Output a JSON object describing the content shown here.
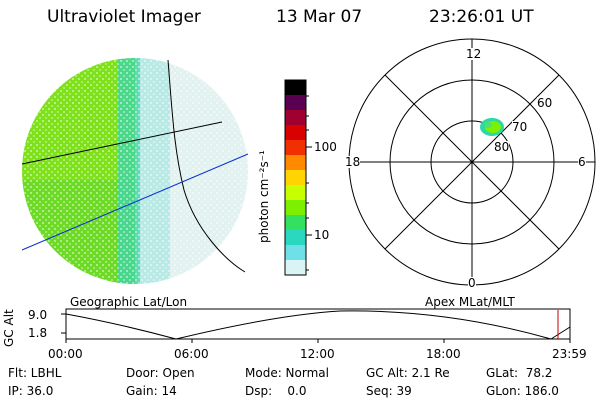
{
  "header": {
    "instrument": "Ultraviolet Imager",
    "date": "13 Mar 07",
    "time": "23:26:01 UT"
  },
  "colorbar": {
    "units_label": "photon cm⁻²s⁻¹",
    "ticks": [
      "100",
      "10"
    ],
    "scale": "log",
    "stops": [
      "#000000",
      "#5a0050",
      "#a00030",
      "#d80000",
      "#f03000",
      "#ff8a00",
      "#ffd400",
      "#c8ff00",
      "#7cf000",
      "#34e060",
      "#2ad8c0",
      "#70e0e8",
      "#d8f4f4"
    ]
  },
  "polar_plot": {
    "hour_labels": [
      "12",
      "18",
      "6",
      "0"
    ],
    "lat_labels": [
      "60",
      "70",
      "80"
    ]
  },
  "timeline": {
    "left_label": "Geographic Lat/Lon",
    "right_label": "Apex MLat/MLT",
    "yaxis_label": "GC Alt",
    "yticks": [
      "9.0",
      "1.8"
    ],
    "xticks": [
      "00:00",
      "06:00",
      "12:00",
      "18:00",
      "23:59"
    ]
  },
  "info": {
    "filter": "Flt: LBHL",
    "door": "Door: Open",
    "mode": "Mode: Normal",
    "gcalt": "GC Alt: 2.1 Re",
    "glat": "GLat:  78.2",
    "ip": "IP: 36.0",
    "gain": "Gain: 14",
    "dsp": "Dsp:    0.0",
    "seq": "Seq: 39",
    "glon": "GLon: 186.0"
  },
  "colors": {
    "blue_line": "#1030d0",
    "marker_red": "#c00000"
  }
}
